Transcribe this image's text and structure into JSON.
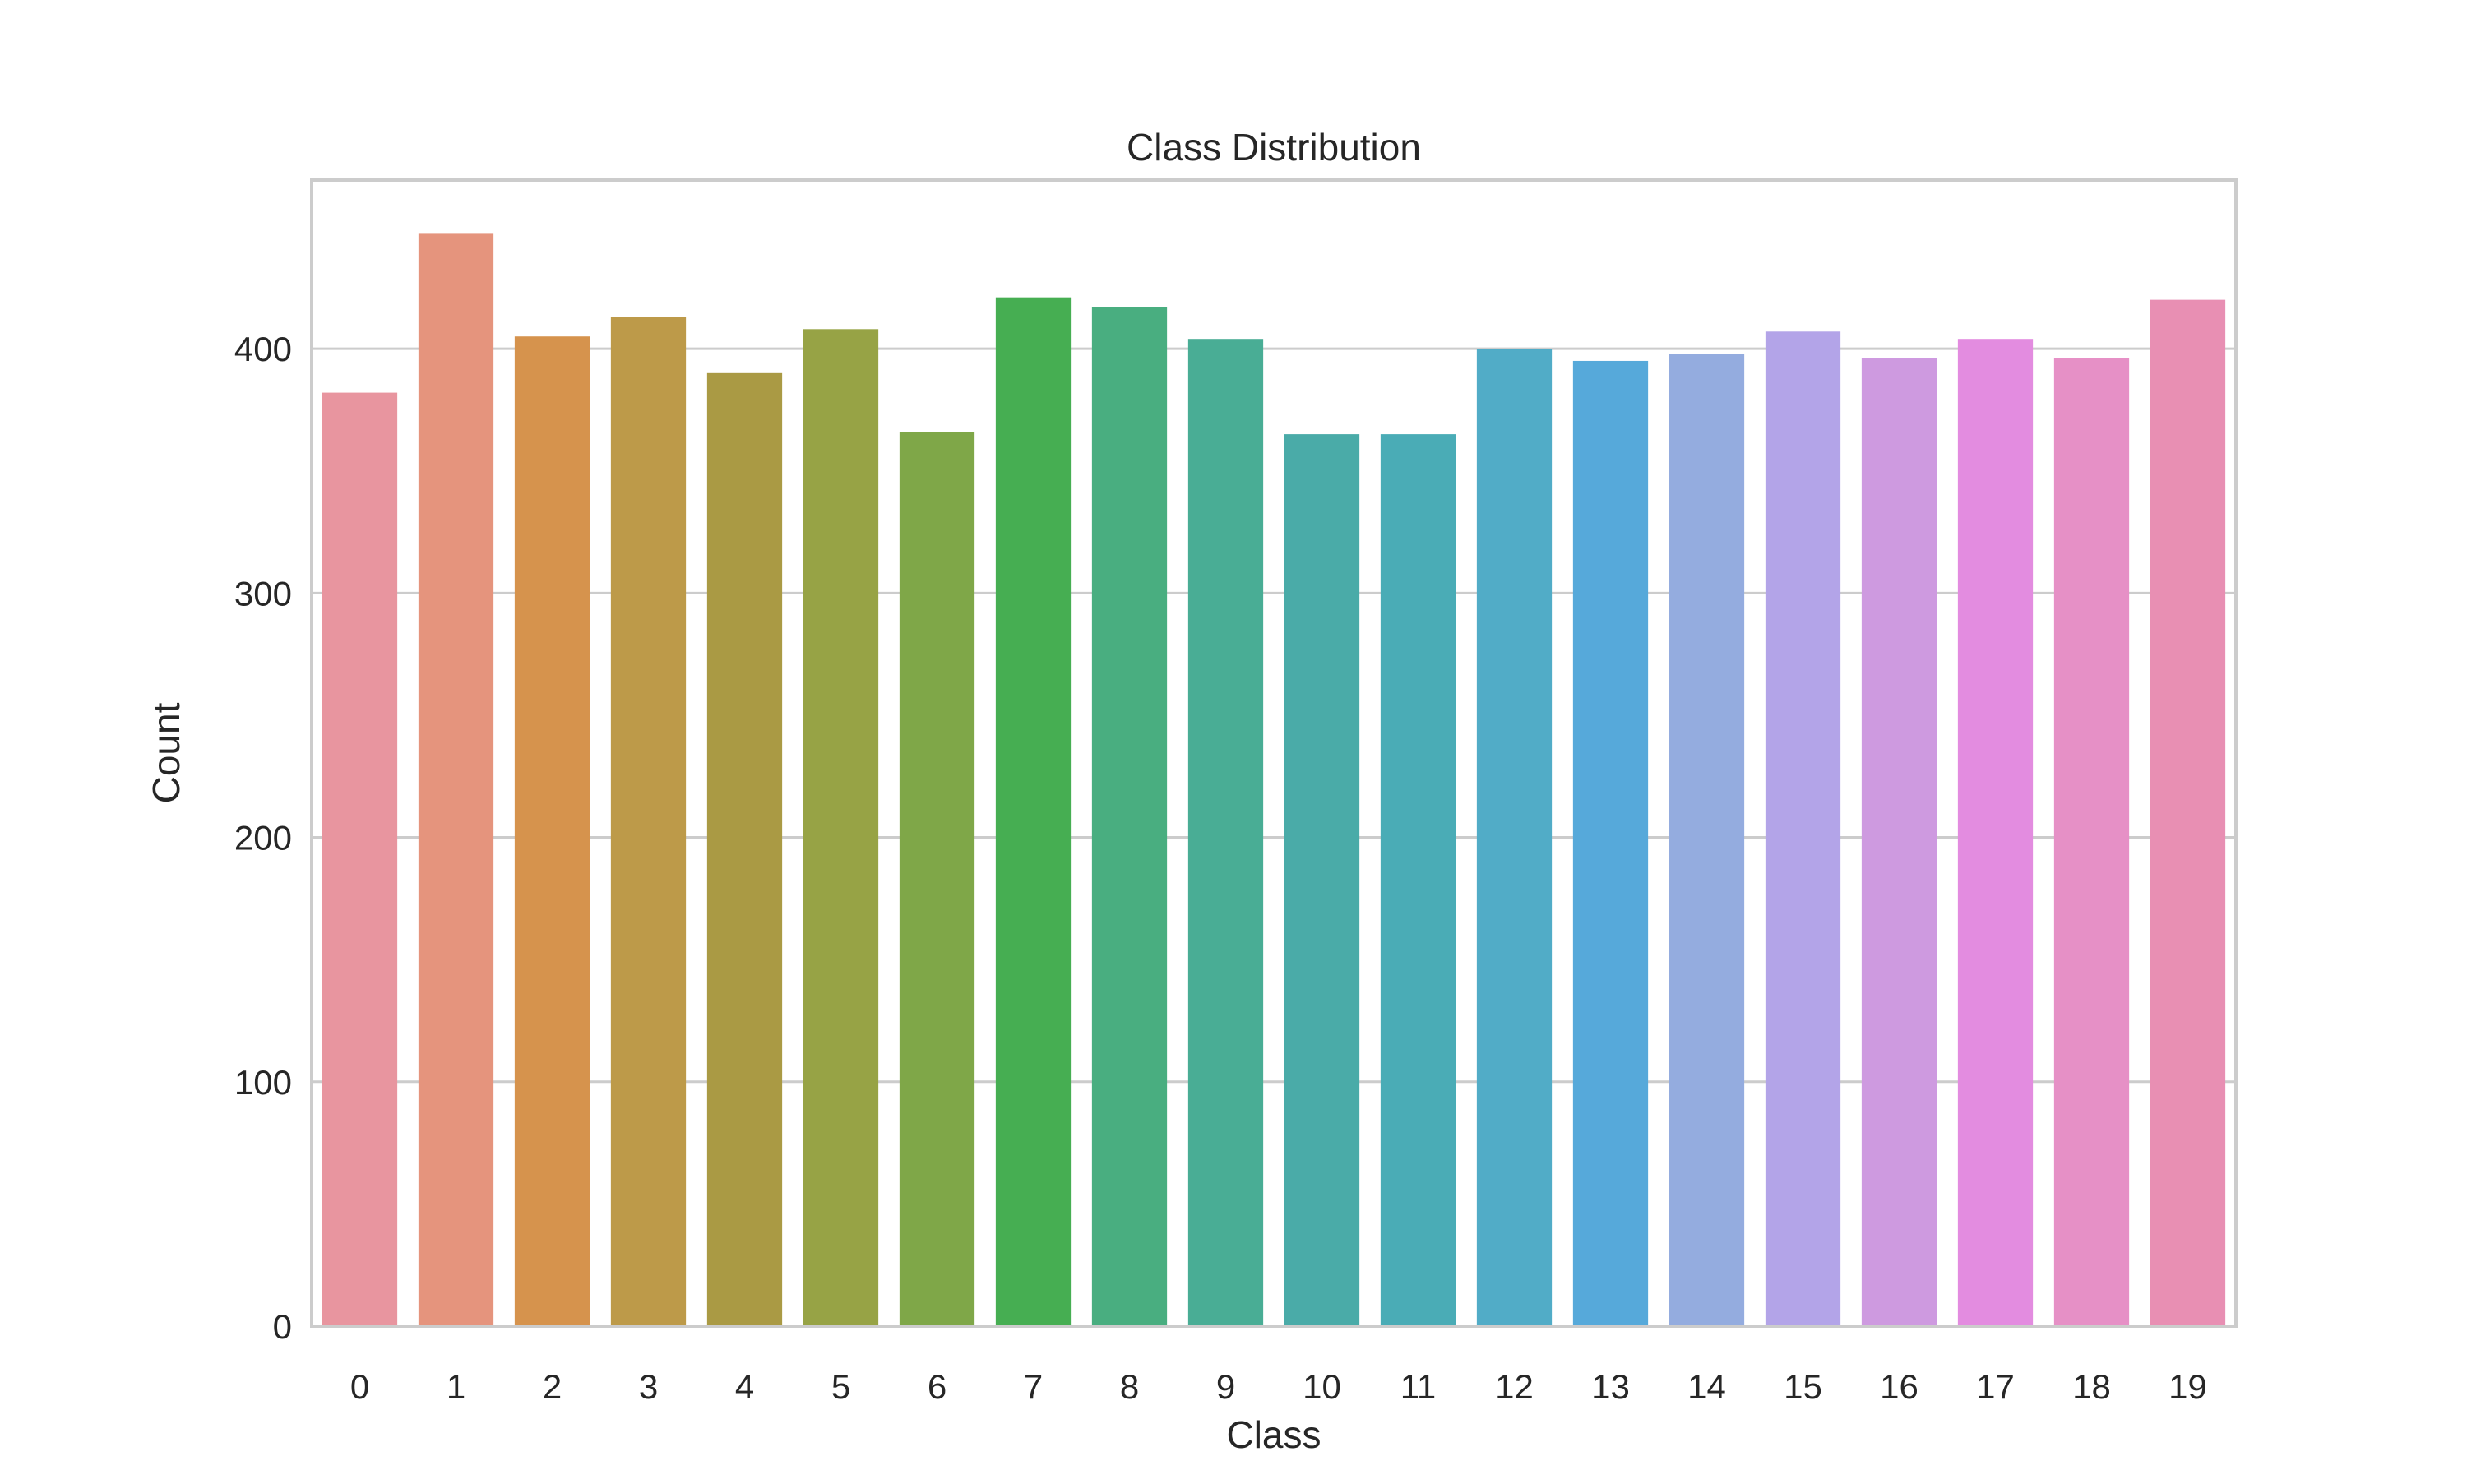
{
  "chart_data": {
    "type": "bar",
    "title": "Class Distribution",
    "xlabel": "Class",
    "ylabel": "Count",
    "categories": [
      "0",
      "1",
      "2",
      "3",
      "4",
      "5",
      "6",
      "7",
      "8",
      "9",
      "10",
      "11",
      "12",
      "13",
      "14",
      "15",
      "16",
      "17",
      "18",
      "19"
    ],
    "values": [
      382,
      447,
      405,
      413,
      390,
      408,
      366,
      421,
      417,
      404,
      365,
      365,
      400,
      395,
      398,
      407,
      396,
      404,
      396,
      420
    ],
    "yticks": [
      0,
      100,
      200,
      300,
      400
    ],
    "ylim": [
      0,
      469
    ],
    "grid": "horizontal",
    "legend": "none",
    "colors": [
      "#e8959f",
      "#e5947d",
      "#d6934d",
      "#bd9a49",
      "#aa9a44",
      "#97a345",
      "#7fa748",
      "#46ae52",
      "#49ae80",
      "#49ad95",
      "#4aaba8",
      "#4aacb6",
      "#51acc7",
      "#56a9da",
      "#94acdf",
      "#b3a4e8",
      "#ce9ae0",
      "#e38ce0",
      "#e690c6",
      "#e88fb3"
    ],
    "frame_color": "#cccccc",
    "grid_color": "#cccccc"
  }
}
